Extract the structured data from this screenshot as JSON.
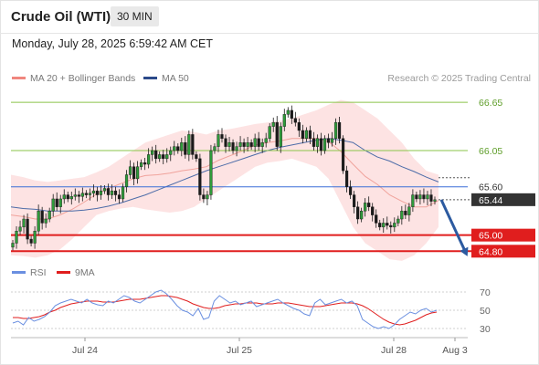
{
  "header": {
    "title": "Crude Oil (WTI)",
    "period": "30 MIN"
  },
  "datetime": "Monday, July 28, 2025 6:59:42 AM CET",
  "legend": {
    "bb_label": "MA 20 + Bollinger Bands",
    "ma50_label": "MA 50",
    "rsi_label": "RSI",
    "ma9_label": "9MA",
    "colors": {
      "bb": "#f0867e",
      "ma50": "#2c4a8a",
      "rsi": "#6a8fe0",
      "ma9": "#e01e1e"
    }
  },
  "credit": "Research © 2025 Trading Central",
  "chart_data": {
    "type": "candlestick",
    "x_ticks": [
      "Jul 24",
      "Jul 25",
      "Jul 28",
      "Aug 3"
    ],
    "ylim": [
      64.69,
      66.81
    ],
    "price_levels": [
      {
        "value": "66.65",
        "type": "resistance",
        "color": "#8ac44a"
      },
      {
        "value": "66.05",
        "type": "resistance",
        "color": "#8ac44a"
      },
      {
        "value": "65.60",
        "type": "pivot",
        "color": "#3b6fd8"
      },
      {
        "value": "65.44",
        "type": "last price",
        "color": "#333333"
      },
      {
        "value": "65.00",
        "type": "support",
        "color": "#e01e1e"
      },
      {
        "value": "64.80",
        "type": "support",
        "color": "#e01e1e"
      }
    ],
    "forecast_arrow": {
      "from": 65.44,
      "to": 64.8,
      "direction": "down"
    },
    "candles": [
      [
        64.85,
        64.9
      ],
      [
        64.9,
        65.05
      ],
      [
        65.05,
        65.1
      ],
      [
        65.1,
        65.2
      ],
      [
        65.2,
        64.95
      ],
      [
        64.95,
        64.9
      ],
      [
        64.9,
        65.05
      ],
      [
        65.05,
        65.3
      ],
      [
        65.3,
        65.15
      ],
      [
        65.15,
        65.2
      ],
      [
        65.2,
        65.3
      ],
      [
        65.3,
        65.45
      ],
      [
        65.45,
        65.35
      ],
      [
        65.35,
        65.45
      ],
      [
        65.45,
        65.5
      ],
      [
        65.5,
        65.45
      ],
      [
        65.45,
        65.48
      ],
      [
        65.48,
        65.5
      ],
      [
        65.5,
        65.48
      ],
      [
        65.48,
        65.52
      ],
      [
        65.52,
        65.5
      ],
      [
        65.5,
        65.52
      ],
      [
        65.52,
        65.55
      ],
      [
        65.55,
        65.5
      ],
      [
        65.5,
        65.55
      ],
      [
        65.55,
        65.58
      ],
      [
        65.58,
        65.5
      ],
      [
        65.5,
        65.55
      ],
      [
        65.55,
        65.5
      ],
      [
        65.5,
        65.45
      ],
      [
        65.45,
        65.6
      ],
      [
        65.6,
        65.75
      ],
      [
        65.75,
        65.85
      ],
      [
        65.85,
        65.7
      ],
      [
        65.7,
        65.85
      ],
      [
        65.85,
        65.9
      ],
      [
        65.9,
        65.88
      ],
      [
        65.88,
        66.0
      ],
      [
        66.0,
        66.05
      ],
      [
        66.05,
        65.95
      ],
      [
        65.95,
        66.0
      ],
      [
        66.0,
        65.95
      ],
      [
        65.95,
        66.0
      ],
      [
        66.0,
        66.05
      ],
      [
        66.05,
        66.1
      ],
      [
        66.1,
        66.05
      ],
      [
        66.05,
        66.15
      ],
      [
        66.15,
        66.0
      ],
      [
        66.0,
        66.25
      ],
      [
        66.25,
        66.0
      ],
      [
        66.0,
        65.95
      ],
      [
        65.95,
        65.5
      ],
      [
        65.5,
        65.45
      ],
      [
        65.45,
        65.5
      ],
      [
        65.5,
        66.05
      ],
      [
        66.05,
        66.1
      ],
      [
        66.1,
        66.25
      ],
      [
        66.25,
        66.2
      ],
      [
        66.2,
        66.1
      ],
      [
        66.1,
        66.15
      ],
      [
        66.15,
        66.05
      ],
      [
        66.05,
        66.1
      ],
      [
        66.1,
        66.15
      ],
      [
        66.15,
        66.1
      ],
      [
        66.1,
        66.15
      ],
      [
        66.15,
        66.1
      ],
      [
        66.1,
        66.2
      ],
      [
        66.2,
        66.1
      ],
      [
        66.1,
        66.15
      ],
      [
        66.15,
        66.2
      ],
      [
        66.2,
        66.35
      ],
      [
        66.35,
        66.4
      ],
      [
        66.4,
        66.1
      ],
      [
        66.1,
        66.35
      ],
      [
        66.35,
        66.5
      ],
      [
        66.5,
        66.55
      ],
      [
        66.55,
        66.45
      ],
      [
        66.45,
        66.4
      ],
      [
        66.4,
        66.3
      ],
      [
        66.3,
        66.2
      ],
      [
        66.2,
        66.3
      ],
      [
        66.3,
        66.2
      ],
      [
        66.2,
        66.1
      ],
      [
        66.1,
        66.2
      ],
      [
        66.2,
        66.05
      ],
      [
        66.05,
        66.2
      ],
      [
        66.2,
        66.15
      ],
      [
        66.15,
        66.2
      ],
      [
        66.2,
        66.4
      ],
      [
        66.4,
        66.2
      ],
      [
        66.2,
        65.8
      ],
      [
        65.8,
        65.6
      ],
      [
        65.6,
        65.5
      ],
      [
        65.5,
        65.35
      ],
      [
        65.35,
        65.2
      ],
      [
        65.2,
        65.3
      ],
      [
        65.3,
        65.4
      ],
      [
        65.4,
        65.35
      ],
      [
        65.35,
        65.25
      ],
      [
        65.25,
        65.15
      ],
      [
        65.15,
        65.1
      ],
      [
        65.1,
        65.15
      ],
      [
        65.15,
        65.12
      ],
      [
        65.12,
        65.1
      ],
      [
        65.1,
        65.15
      ],
      [
        65.15,
        65.2
      ],
      [
        65.2,
        65.3
      ],
      [
        65.3,
        65.25
      ],
      [
        65.25,
        65.35
      ],
      [
        65.35,
        65.5
      ],
      [
        65.5,
        65.45
      ],
      [
        65.45,
        65.5
      ],
      [
        65.5,
        65.45
      ],
      [
        65.45,
        65.5
      ],
      [
        65.5,
        65.42
      ],
      [
        65.42,
        65.44
      ]
    ],
    "bb_upper": [
      65.75,
      65.72,
      65.68,
      65.66,
      65.68,
      65.7,
      65.72,
      65.78,
      65.85,
      65.95,
      66.05,
      66.15,
      66.2,
      66.25,
      66.3,
      66.28,
      66.25,
      66.3,
      66.32,
      66.35,
      66.38,
      66.4,
      66.42,
      66.45,
      66.5,
      66.55,
      66.62,
      66.68,
      66.65,
      66.55,
      66.45,
      66.3,
      66.15,
      65.95,
      65.8,
      65.75
    ],
    "bb_lower": [
      64.75,
      64.74,
      64.72,
      64.75,
      64.82,
      64.95,
      65.1,
      65.25,
      65.3,
      65.33,
      65.35,
      65.32,
      65.3,
      65.28,
      65.3,
      65.35,
      65.45,
      65.55,
      65.65,
      65.75,
      65.85,
      65.9,
      65.92,
      65.95,
      65.9,
      65.85,
      65.7,
      65.4,
      65.1,
      64.9,
      64.8,
      64.7,
      64.68,
      64.75,
      64.9,
      65.1
    ],
    "ma20": [
      65.25,
      65.23,
      65.2,
      65.2,
      65.25,
      65.32,
      65.41,
      65.51,
      65.58,
      65.64,
      65.7,
      65.74,
      65.75,
      65.77,
      65.8,
      65.82,
      65.85,
      65.93,
      65.99,
      66.05,
      66.12,
      66.15,
      66.17,
      66.2,
      66.2,
      66.2,
      66.16,
      66.04,
      65.88,
      65.73,
      65.63,
      65.5,
      65.42,
      65.35,
      65.35,
      65.43
    ],
    "ma50": [
      65.35,
      65.33,
      65.32,
      65.3,
      65.3,
      65.3,
      65.31,
      65.33,
      65.36,
      65.4,
      65.45,
      65.5,
      65.56,
      65.62,
      65.68,
      65.74,
      65.8,
      65.85,
      65.9,
      65.95,
      66.0,
      66.05,
      66.09,
      66.12,
      66.15,
      66.18,
      66.2,
      66.18,
      66.15,
      66.05,
      65.97,
      65.92,
      65.85,
      65.79,
      65.72,
      65.66
    ],
    "rsi": {
      "y_ticks": [
        "70",
        "50",
        "30"
      ],
      "rsi_values": [
        36,
        38,
        34,
        42,
        38,
        40,
        43,
        48,
        55,
        58,
        60,
        62,
        60,
        58,
        62,
        58,
        56,
        55,
        60,
        58,
        62,
        66,
        64,
        60,
        58,
        62,
        66,
        70,
        72,
        68,
        62,
        55,
        50,
        48,
        44,
        52,
        40,
        42,
        60,
        66,
        62,
        58,
        60,
        56,
        58,
        60,
        54,
        56,
        58,
        60,
        62,
        58,
        55,
        52,
        50,
        46,
        44,
        58,
        62,
        56,
        58,
        60,
        62,
        58,
        60,
        55,
        40,
        36,
        32,
        30,
        32,
        30,
        34,
        40,
        44,
        48,
        46,
        50,
        52,
        48,
        50
      ],
      "ma9_values": [
        42,
        42,
        41,
        41,
        42,
        43,
        45,
        48,
        50,
        53,
        55,
        57,
        58,
        59,
        60,
        60,
        60,
        59,
        59,
        59,
        60,
        61,
        62,
        62,
        62,
        63,
        64,
        65,
        66,
        66,
        65,
        64,
        62,
        60,
        57,
        55,
        53,
        52,
        52,
        53,
        55,
        56,
        57,
        57,
        58,
        58,
        58,
        57,
        57,
        57,
        58,
        58,
        58,
        57,
        56,
        55,
        54,
        54,
        54,
        55,
        56,
        57,
        58,
        58,
        58,
        57,
        55,
        52,
        48,
        44,
        40,
        37,
        35,
        34,
        35,
        37,
        39,
        42,
        45,
        47,
        48
      ]
    }
  }
}
